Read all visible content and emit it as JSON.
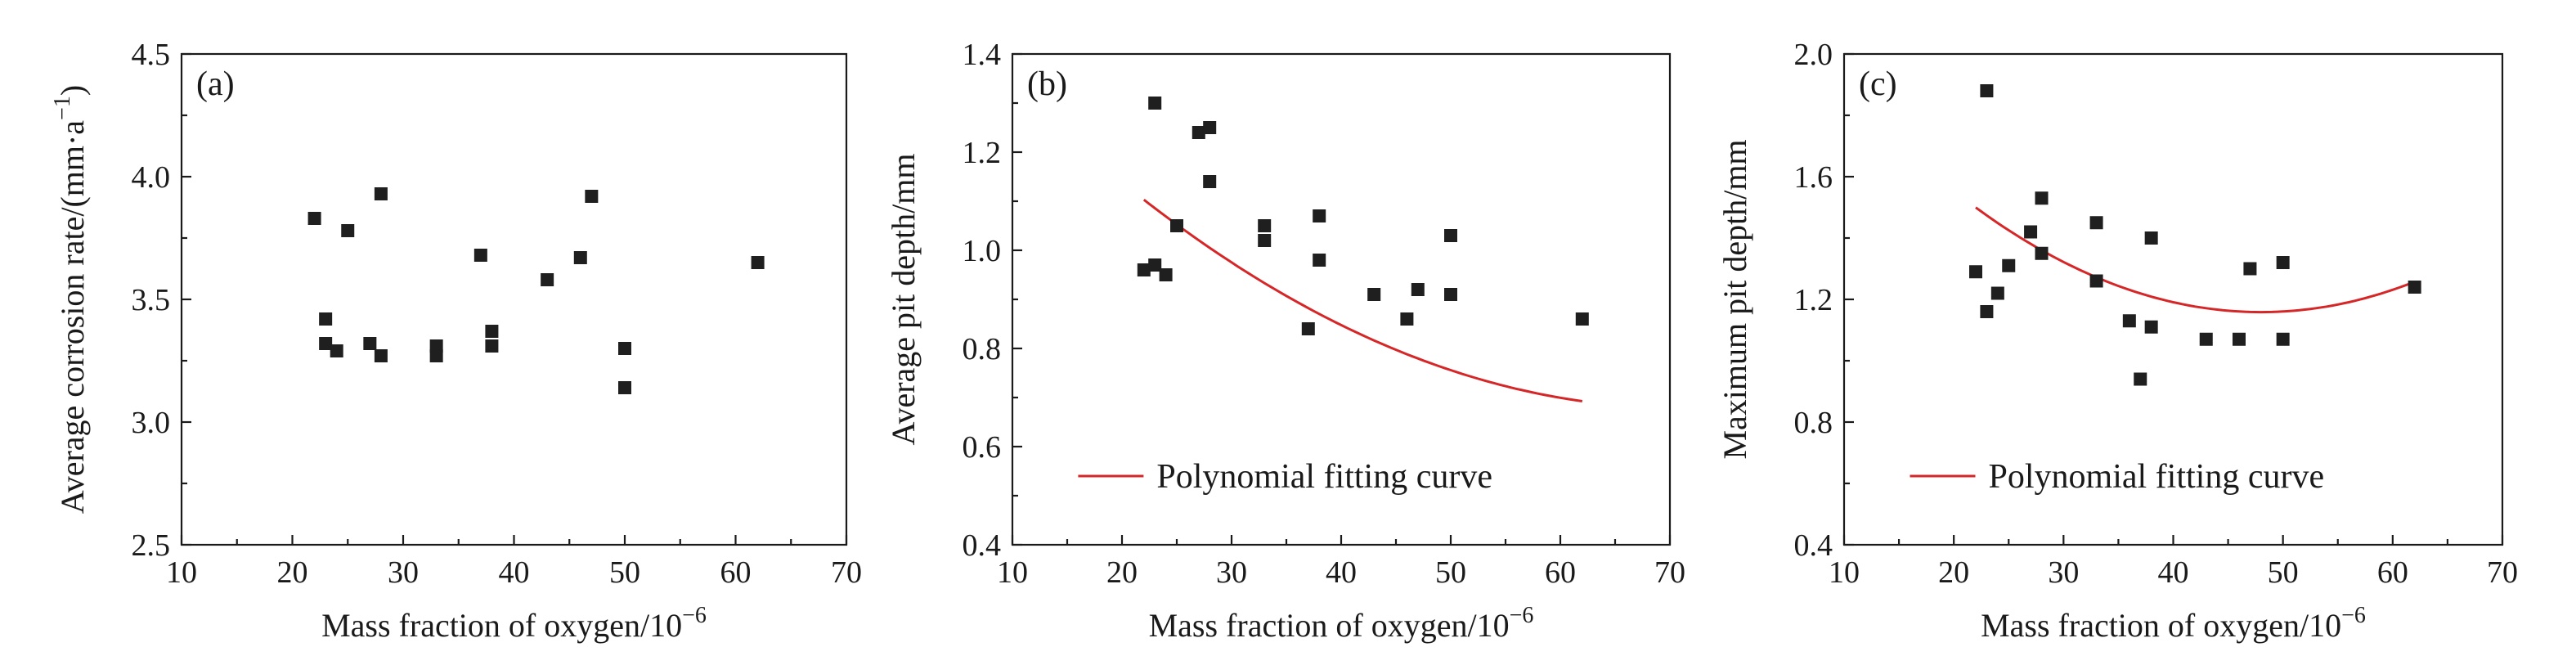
{
  "chart_data": [
    {
      "type": "scatter",
      "panel_label": "(a)",
      "xlabel": "Mass fraction of oxygen/10",
      "xlabel_sup": "−6",
      "ylabel": "Average corrosion rate/(mm·a",
      "ylabel_sup": "−1",
      "ylabel_tail": ")",
      "xlim": [
        10,
        70
      ],
      "ylim": [
        2.5,
        4.5
      ],
      "x_ticks": [
        "10",
        "20",
        "30",
        "40",
        "50",
        "60",
        "70"
      ],
      "y_ticks": [
        "2.5",
        "3.0",
        "3.5",
        "4.0",
        "4.5"
      ],
      "grid": false,
      "marker": "square",
      "points": [
        {
          "x": 22,
          "y": 3.83
        },
        {
          "x": 23,
          "y": 3.42
        },
        {
          "x": 23,
          "y": 3.32
        },
        {
          "x": 24,
          "y": 3.29
        },
        {
          "x": 25,
          "y": 3.78
        },
        {
          "x": 27,
          "y": 3.32
        },
        {
          "x": 28,
          "y": 3.93
        },
        {
          "x": 28,
          "y": 3.27
        },
        {
          "x": 33,
          "y": 3.31
        },
        {
          "x": 33,
          "y": 3.27
        },
        {
          "x": 37,
          "y": 3.68
        },
        {
          "x": 38,
          "y": 3.37
        },
        {
          "x": 38,
          "y": 3.31
        },
        {
          "x": 43,
          "y": 3.58
        },
        {
          "x": 46,
          "y": 3.67
        },
        {
          "x": 47,
          "y": 3.92
        },
        {
          "x": 50,
          "y": 3.3
        },
        {
          "x": 50,
          "y": 3.14
        },
        {
          "x": 62,
          "y": 3.65
        }
      ]
    },
    {
      "type": "scatter",
      "panel_label": "(b)",
      "xlabel": "Mass fraction of oxygen/10",
      "xlabel_sup": "−6",
      "ylabel": "Average pit depth/mm",
      "xlim": [
        10,
        70
      ],
      "ylim": [
        0.4,
        1.4
      ],
      "x_ticks": [
        "10",
        "20",
        "30",
        "40",
        "50",
        "60",
        "70"
      ],
      "y_ticks": [
        "0.4",
        "0.6",
        "0.8",
        "1.0",
        "1.2",
        "1.4"
      ],
      "grid": false,
      "marker": "square",
      "legend": {
        "position": "bottom-right",
        "label": "Polynomial fitting curve",
        "color": "#d62728"
      },
      "fit": {
        "x_range": [
          22,
          62
        ],
        "coefficients": [
          1.572,
          -0.02524,
          0.0001783
        ]
      },
      "points": [
        {
          "x": 22,
          "y": 0.96
        },
        {
          "x": 23,
          "y": 1.3
        },
        {
          "x": 23,
          "y": 0.97
        },
        {
          "x": 24,
          "y": 0.95
        },
        {
          "x": 25,
          "y": 1.05
        },
        {
          "x": 27,
          "y": 1.24
        },
        {
          "x": 28,
          "y": 1.25
        },
        {
          "x": 28,
          "y": 1.14
        },
        {
          "x": 33,
          "y": 1.05
        },
        {
          "x": 33,
          "y": 1.02
        },
        {
          "x": 37,
          "y": 0.84
        },
        {
          "x": 38,
          "y": 1.07
        },
        {
          "x": 38,
          "y": 0.98
        },
        {
          "x": 43,
          "y": 0.91
        },
        {
          "x": 46,
          "y": 0.86
        },
        {
          "x": 47,
          "y": 0.92
        },
        {
          "x": 50,
          "y": 1.03
        },
        {
          "x": 50,
          "y": 0.91
        },
        {
          "x": 62,
          "y": 0.86
        }
      ]
    },
    {
      "type": "scatter",
      "panel_label": "(c)",
      "xlabel": "Mass fraction of oxygen/10",
      "xlabel_sup": "−6",
      "ylabel": "Maximum pit depth/mm",
      "xlim": [
        10,
        70
      ],
      "ylim": [
        0.4,
        2.0
      ],
      "x_ticks": [
        "10",
        "20",
        "30",
        "40",
        "50",
        "60",
        "70"
      ],
      "y_ticks": [
        "0.4",
        "0.8",
        "1.2",
        "1.6",
        "2.0"
      ],
      "grid": false,
      "marker": "square",
      "legend": {
        "position": "bottom-right",
        "label": "Polynomial fitting curve",
        "color": "#d62728"
      },
      "fit": {
        "x_range": [
          22,
          62
        ],
        "coefficients": [
          2.321,
          -0.04844,
          0.0005046
        ]
      },
      "points": [
        {
          "x": 22,
          "y": 1.29
        },
        {
          "x": 23,
          "y": 1.88
        },
        {
          "x": 23,
          "y": 1.16
        },
        {
          "x": 24,
          "y": 1.22
        },
        {
          "x": 25,
          "y": 1.31
        },
        {
          "x": 27,
          "y": 1.42
        },
        {
          "x": 28,
          "y": 1.53
        },
        {
          "x": 28,
          "y": 1.35
        },
        {
          "x": 33,
          "y": 1.45
        },
        {
          "x": 33,
          "y": 1.26
        },
        {
          "x": 36,
          "y": 1.13
        },
        {
          "x": 37,
          "y": 0.94
        },
        {
          "x": 38,
          "y": 1.4
        },
        {
          "x": 38,
          "y": 1.11
        },
        {
          "x": 43,
          "y": 1.07
        },
        {
          "x": 46,
          "y": 1.07
        },
        {
          "x": 47,
          "y": 1.3
        },
        {
          "x": 50,
          "y": 1.32
        },
        {
          "x": 50,
          "y": 1.07
        },
        {
          "x": 62,
          "y": 1.24
        }
      ]
    }
  ]
}
